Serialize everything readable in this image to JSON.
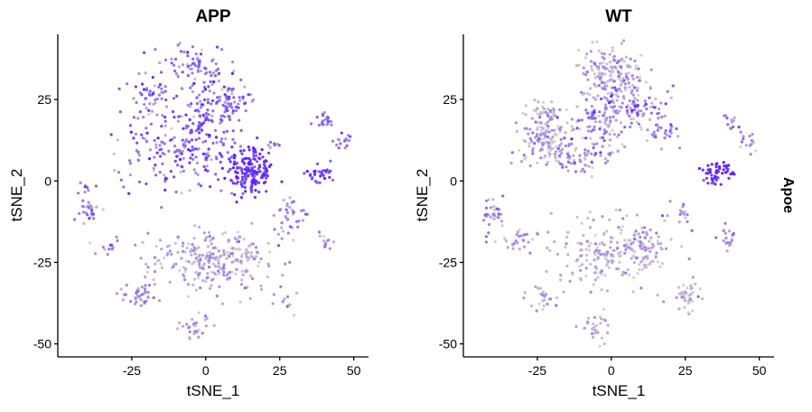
{
  "chart_data": [
    {
      "type": "scatter",
      "title": "APP",
      "xlabel": "tSNE_1",
      "ylabel": "tSNE_2",
      "xlim": [
        -50,
        55
      ],
      "ylim": [
        -54,
        45
      ],
      "x_ticks": [
        -25,
        0,
        25,
        50
      ],
      "x_tick_labels": [
        "-25",
        "0",
        "25",
        "50"
      ],
      "y_ticks": [
        25,
        0,
        -25,
        -50
      ],
      "y_tick_labels": [
        "25",
        "0",
        "-25",
        "-50"
      ],
      "color_low": "#d3d3d3",
      "color_high": "#5a1eff",
      "clusters": [
        {
          "cx": 15,
          "cy": 3,
          "rx": 7,
          "ry": 8,
          "n": 160,
          "expr": 0.85,
          "spread": 0.1
        },
        {
          "cx": 0,
          "cy": 15,
          "rx": 12,
          "ry": 14,
          "n": 170,
          "expr": 0.6,
          "spread": 0.2
        },
        {
          "cx": -15,
          "cy": 10,
          "rx": 14,
          "ry": 12,
          "n": 110,
          "expr": 0.55,
          "spread": 0.25
        },
        {
          "cx": -5,
          "cy": 35,
          "rx": 12,
          "ry": 7,
          "n": 70,
          "expr": 0.45,
          "spread": 0.2
        },
        {
          "cx": -18,
          "cy": 25,
          "rx": 8,
          "ry": 6,
          "n": 45,
          "expr": 0.45,
          "spread": 0.2
        },
        {
          "cx": 8,
          "cy": 25,
          "rx": 8,
          "ry": 6,
          "n": 60,
          "expr": 0.55,
          "spread": 0.2
        },
        {
          "cx": 3,
          "cy": -24,
          "rx": 20,
          "ry": 9,
          "n": 260,
          "expr": 0.25,
          "spread": 0.15
        },
        {
          "cx": -40,
          "cy": -8,
          "rx": 4,
          "ry": 6,
          "n": 35,
          "expr": 0.4,
          "spread": 0.2
        },
        {
          "cx": -33,
          "cy": -20,
          "rx": 5,
          "ry": 3,
          "n": 12,
          "expr": 0.3,
          "spread": 0.2
        },
        {
          "cx": -22,
          "cy": -35,
          "rx": 7,
          "ry": 3,
          "n": 35,
          "expr": 0.35,
          "spread": 0.15
        },
        {
          "cx": -4,
          "cy": -45,
          "rx": 5,
          "ry": 4,
          "n": 30,
          "expr": 0.35,
          "spread": 0.15
        },
        {
          "cx": 28,
          "cy": -10,
          "rx": 4,
          "ry": 5,
          "n": 35,
          "expr": 0.4,
          "spread": 0.2
        },
        {
          "cx": 38,
          "cy": 2,
          "rx": 5,
          "ry": 3,
          "n": 30,
          "expr": 0.75,
          "spread": 0.15
        },
        {
          "cx": 40,
          "cy": 19,
          "rx": 3,
          "ry": 2,
          "n": 20,
          "expr": 0.55,
          "spread": 0.15
        },
        {
          "cx": 46,
          "cy": 12,
          "rx": 3,
          "ry": 3,
          "n": 15,
          "expr": 0.5,
          "spread": 0.15
        },
        {
          "cx": 41,
          "cy": -18,
          "rx": 3,
          "ry": 3,
          "n": 12,
          "expr": 0.35,
          "spread": 0.15
        },
        {
          "cx": 27,
          "cy": -36,
          "rx": 4,
          "ry": 5,
          "n": 12,
          "expr": 0.25,
          "spread": 0.15
        },
        {
          "cx": 23,
          "cy": 11,
          "rx": 2,
          "ry": 1,
          "n": 8,
          "expr": 0.4,
          "spread": 0.15
        }
      ]
    },
    {
      "type": "scatter",
      "title": "WT",
      "xlabel": "tSNE_1",
      "ylabel": "tSNE_2",
      "xlim": [
        -50,
        55
      ],
      "ylim": [
        -54,
        45
      ],
      "x_ticks": [
        -25,
        0,
        25,
        50
      ],
      "x_tick_labels": [
        "-25",
        "0",
        "25",
        "50"
      ],
      "y_ticks": [
        25,
        0,
        -25,
        -50
      ],
      "y_tick_labels": [
        "25",
        "0",
        "-25",
        "-50"
      ],
      "color_low": "#d3d3d3",
      "color_high": "#5a1eff",
      "clusters": [
        {
          "cx": 0,
          "cy": 33,
          "rx": 10,
          "ry": 7,
          "n": 170,
          "expr": 0.2,
          "spread": 0.2
        },
        {
          "cx": -22,
          "cy": 15,
          "rx": 8,
          "ry": 10,
          "n": 170,
          "expr": 0.2,
          "spread": 0.2
        },
        {
          "cx": -3,
          "cy": 18,
          "rx": 10,
          "ry": 8,
          "n": 110,
          "expr": 0.35,
          "spread": 0.25
        },
        {
          "cx": 10,
          "cy": 22,
          "rx": 10,
          "ry": 7,
          "n": 80,
          "expr": 0.35,
          "spread": 0.25
        },
        {
          "cx": -10,
          "cy": 7,
          "rx": 10,
          "ry": 5,
          "n": 60,
          "expr": 0.3,
          "spread": 0.25
        },
        {
          "cx": 0,
          "cy": -23,
          "rx": 18,
          "ry": 10,
          "n": 180,
          "expr": 0.15,
          "spread": 0.15
        },
        {
          "cx": 10,
          "cy": -20,
          "rx": 8,
          "ry": 5,
          "n": 60,
          "expr": 0.25,
          "spread": 0.15
        },
        {
          "cx": 36,
          "cy": 3,
          "rx": 5,
          "ry": 2,
          "n": 35,
          "expr": 0.95,
          "spread": 0.05
        },
        {
          "cx": 34,
          "cy": 0,
          "rx": 3,
          "ry": 2,
          "n": 15,
          "expr": 0.8,
          "spread": 0.1
        },
        {
          "cx": -40,
          "cy": -10,
          "rx": 4,
          "ry": 6,
          "n": 35,
          "expr": 0.3,
          "spread": 0.2
        },
        {
          "cx": -30,
          "cy": -18,
          "rx": 5,
          "ry": 3,
          "n": 25,
          "expr": 0.25,
          "spread": 0.2
        },
        {
          "cx": -24,
          "cy": -35,
          "rx": 6,
          "ry": 3,
          "n": 25,
          "expr": 0.2,
          "spread": 0.15
        },
        {
          "cx": -5,
          "cy": -45,
          "rx": 5,
          "ry": 4,
          "n": 30,
          "expr": 0.15,
          "spread": 0.15
        },
        {
          "cx": 25,
          "cy": -35,
          "rx": 4,
          "ry": 4,
          "n": 40,
          "expr": 0.15,
          "spread": 0.15
        },
        {
          "cx": 40,
          "cy": -18,
          "rx": 3,
          "ry": 3,
          "n": 20,
          "expr": 0.3,
          "spread": 0.15
        },
        {
          "cx": 40,
          "cy": 18,
          "rx": 3,
          "ry": 2,
          "n": 12,
          "expr": 0.45,
          "spread": 0.15
        },
        {
          "cx": 46,
          "cy": 12,
          "rx": 3,
          "ry": 3,
          "n": 15,
          "expr": 0.35,
          "spread": 0.15
        },
        {
          "cx": 25,
          "cy": -10,
          "rx": 4,
          "ry": 4,
          "n": 15,
          "expr": 0.35,
          "spread": 0.15
        },
        {
          "cx": 18,
          "cy": 15,
          "rx": 5,
          "ry": 3,
          "n": 25,
          "expr": 0.4,
          "spread": 0.2
        }
      ]
    }
  ],
  "gene_label": "Apoe"
}
